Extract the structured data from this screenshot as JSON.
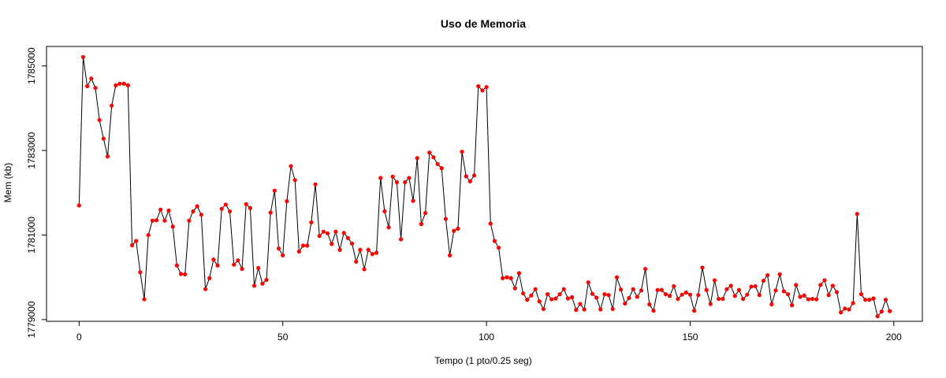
{
  "chart_data": {
    "type": "line",
    "title": "Uso de Memoria",
    "xlabel": "Tempo (1 pto/0.25 seg)",
    "ylabel": "Mem (kb)",
    "xlim": [
      -8,
      207
    ],
    "ylim": [
      1778960,
      1785460
    ],
    "x_ticks": [
      0,
      50,
      100,
      150,
      200
    ],
    "y_ticks": [
      1779000,
      1781000,
      1783000,
      1785000
    ],
    "grid": false,
    "legend": "none",
    "colors": {
      "line": "#000000",
      "points": "#ff0000"
    },
    "series": [
      {
        "x": [
          0,
          1,
          2,
          3,
          4,
          5,
          6,
          7,
          8,
          9,
          10,
          11,
          12,
          13,
          14,
          15,
          16,
          17,
          18,
          19,
          20,
          21,
          22,
          23,
          24,
          25,
          26,
          27,
          28,
          29,
          30,
          31,
          32,
          33,
          34,
          35,
          36,
          37,
          38,
          39,
          40,
          41,
          42,
          43,
          44,
          45,
          46,
          47,
          48,
          49,
          50,
          51,
          52,
          53,
          54,
          55,
          56,
          57,
          58,
          59,
          60,
          61,
          62,
          63,
          64,
          65,
          66,
          67,
          68,
          69,
          70,
          71,
          72,
          73,
          74,
          75,
          76,
          77,
          78,
          79,
          80,
          81,
          82,
          83,
          84,
          85,
          86,
          87,
          88,
          89,
          90,
          91,
          92,
          93,
          94,
          95,
          96,
          97,
          98,
          99,
          100,
          101,
          102,
          103,
          104,
          105,
          106,
          107,
          108,
          109,
          110,
          111,
          112,
          113,
          114,
          115,
          116,
          117,
          118,
          119,
          120,
          121,
          122,
          123,
          124,
          125,
          126,
          127,
          128,
          129,
          130,
          131,
          132,
          133,
          134,
          135,
          136,
          137,
          138,
          139,
          140,
          141,
          142,
          143,
          144,
          145,
          146,
          147,
          148,
          149,
          150,
          151,
          152,
          153,
          154,
          155,
          156,
          157,
          158,
          159,
          160,
          161,
          162,
          163,
          164,
          165,
          166,
          167,
          168,
          169,
          170,
          171,
          172,
          173,
          174,
          175,
          176,
          177,
          178,
          179,
          180,
          181,
          182,
          183,
          184,
          185,
          186,
          187,
          188,
          189,
          190,
          191,
          192,
          193,
          194,
          195,
          196,
          197,
          198,
          199
        ],
        "values": [
          1781700,
          1785210,
          1784520,
          1784700,
          1784480,
          1783720,
          1783280,
          1782860,
          1784060,
          1784540,
          1784580,
          1784580,
          1784540,
          1780760,
          1780860,
          1780120,
          1779480,
          1781000,
          1781340,
          1781350,
          1781600,
          1781340,
          1781580,
          1781200,
          1780280,
          1780080,
          1780070,
          1781340,
          1781560,
          1781680,
          1781480,
          1779720,
          1779980,
          1780420,
          1780280,
          1781620,
          1781720,
          1781560,
          1780300,
          1780400,
          1780200,
          1781730,
          1781640,
          1779800,
          1780220,
          1779850,
          1779940,
          1781530,
          1782050,
          1780680,
          1780520,
          1781800,
          1782630,
          1782300,
          1780610,
          1780750,
          1780750,
          1781300,
          1782200,
          1780980,
          1781080,
          1781040,
          1780790,
          1781080,
          1780650,
          1781050,
          1780930,
          1780800,
          1780370,
          1780650,
          1780190,
          1780650,
          1780550,
          1780580,
          1782350,
          1781560,
          1781180,
          1782380,
          1782250,
          1780900,
          1782250,
          1782350,
          1781810,
          1782820,
          1781260,
          1781520,
          1782950,
          1782840,
          1782680,
          1782580,
          1781380,
          1780520,
          1781100,
          1781150,
          1782970,
          1782390,
          1782270,
          1782410,
          1784520,
          1784420,
          1784500,
          1781270,
          1780860,
          1780700,
          1779980,
          1780000,
          1779980,
          1779740,
          1780100,
          1779620,
          1779470,
          1779570,
          1779720,
          1779430,
          1779250,
          1779600,
          1779480,
          1779500,
          1779600,
          1779720,
          1779500,
          1779530,
          1779230,
          1779370,
          1779240,
          1779880,
          1779610,
          1779520,
          1779240,
          1779600,
          1779580,
          1779250,
          1780000,
          1779710,
          1779380,
          1779510,
          1779720,
          1779540,
          1779690,
          1780200,
          1779360,
          1779210,
          1779700,
          1779700,
          1779600,
          1779560,
          1779790,
          1779490,
          1779590,
          1779640,
          1779590,
          1779210,
          1779580,
          1780230,
          1779700,
          1779370,
          1779930,
          1779490,
          1779490,
          1779720,
          1779800,
          1779560,
          1779700,
          1779490,
          1779590,
          1779780,
          1779790,
          1779580,
          1779920,
          1780050,
          1779360,
          1779690,
          1780070,
          1779670,
          1779600,
          1779340,
          1779820,
          1779540,
          1779570,
          1779480,
          1779490,
          1779480,
          1779820,
          1779930,
          1779580,
          1779800,
          1779650,
          1779170,
          1779260,
          1779240,
          1779390,
          1781500,
          1779600,
          1779470,
          1779470,
          1779500,
          1779080,
          1779190,
          1779470,
          1779200
        ]
      }
    ]
  }
}
